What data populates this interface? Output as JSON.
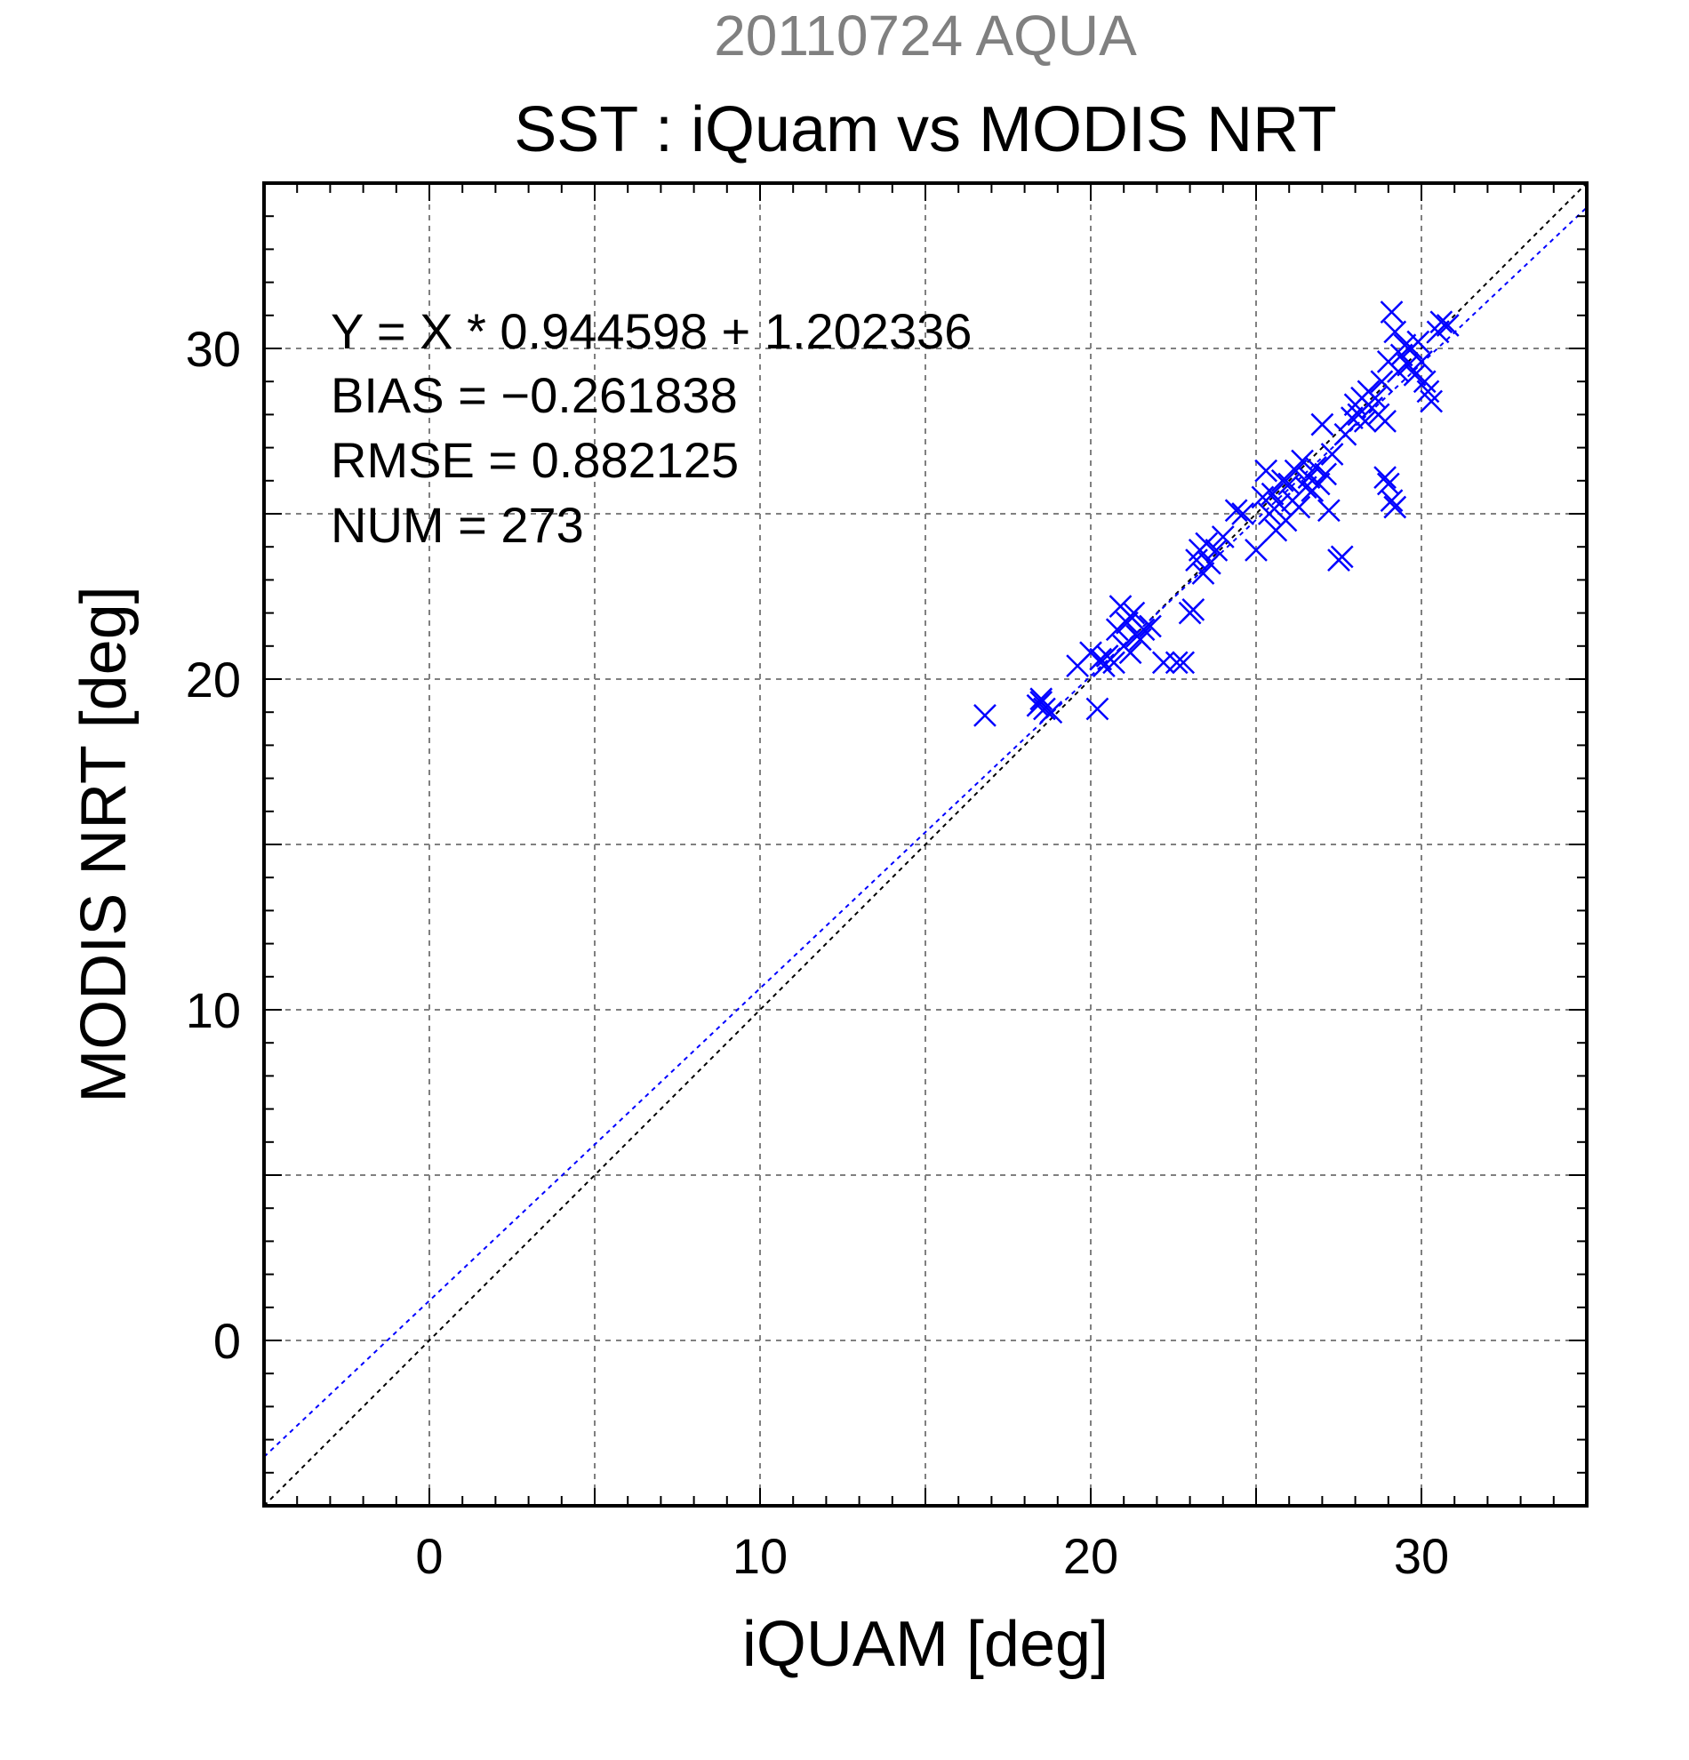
{
  "chart_data": {
    "type": "scatter",
    "suptitle": "20110724 AQUA",
    "title": "SST : iQuam vs MODIS NRT",
    "xlabel": "iQUAM [deg]",
    "ylabel": "MODIS NRT [deg]",
    "xlim": [
      -5,
      35
    ],
    "ylim": [
      -5,
      35
    ],
    "xticks": [
      0,
      10,
      20,
      30
    ],
    "yticks": [
      0,
      10,
      20,
      30
    ],
    "xtick_labels": [
      "0",
      "10",
      "20",
      "30"
    ],
    "ytick_labels": [
      "0",
      "10",
      "20",
      "30"
    ],
    "grid": true,
    "stats": [
      "Y = X * 0.944598 + 1.202336",
      "BIAS = −0.261838",
      "RMSE = 0.882125",
      "NUM = 273"
    ],
    "fit": {
      "slope": 0.944598,
      "intercept": 1.202336
    },
    "reference_line": {
      "slope": 1,
      "intercept": 0
    },
    "colors": {
      "points": "#0000ff",
      "fit_line": "#0000ff",
      "ref_line": "#000000",
      "grid": "#808080",
      "suptitle": "#808080"
    },
    "series": [
      {
        "marker": "x",
        "points": [
          [
            16.8,
            18.9
          ],
          [
            18.4,
            19.2
          ],
          [
            18.5,
            19.3
          ],
          [
            18.6,
            19.1
          ],
          [
            18.8,
            19.0
          ],
          [
            18.5,
            19.4
          ],
          [
            19.6,
            20.4
          ],
          [
            20.0,
            20.8
          ],
          [
            20.2,
            19.1
          ],
          [
            20.3,
            20.6
          ],
          [
            20.4,
            20.4
          ],
          [
            20.5,
            20.7
          ],
          [
            20.7,
            20.5
          ],
          [
            20.8,
            21.5
          ],
          [
            20.9,
            22.2
          ],
          [
            21.0,
            21.0
          ],
          [
            21.1,
            21.7
          ],
          [
            21.2,
            20.8
          ],
          [
            21.3,
            22.0
          ],
          [
            21.4,
            21.3
          ],
          [
            21.5,
            21.2
          ],
          [
            21.6,
            21.5
          ],
          [
            21.2,
            21.9
          ],
          [
            21.8,
            21.6
          ],
          [
            22.2,
            20.5
          ],
          [
            22.6,
            20.5
          ],
          [
            22.8,
            20.5
          ],
          [
            23.0,
            22.0
          ],
          [
            23.1,
            22.1
          ],
          [
            23.2,
            23.6
          ],
          [
            23.3,
            23.9
          ],
          [
            23.4,
            23.2
          ],
          [
            23.5,
            24.1
          ],
          [
            23.6,
            23.5
          ],
          [
            23.8,
            23.9
          ],
          [
            24.0,
            24.3
          ],
          [
            24.4,
            25.1
          ],
          [
            24.6,
            25.0
          ],
          [
            25.0,
            23.9
          ],
          [
            25.2,
            25.5
          ],
          [
            25.3,
            26.3
          ],
          [
            25.4,
            25.0
          ],
          [
            25.5,
            25.6
          ],
          [
            25.6,
            24.5
          ],
          [
            25.7,
            25.3
          ],
          [
            25.8,
            26.0
          ],
          [
            25.9,
            24.8
          ],
          [
            26.0,
            25.9
          ],
          [
            26.1,
            25.4
          ],
          [
            26.2,
            26.3
          ],
          [
            26.3,
            25.2
          ],
          [
            26.4,
            26.6
          ],
          [
            26.5,
            25.8
          ],
          [
            26.6,
            26.1
          ],
          [
            26.7,
            25.7
          ],
          [
            26.8,
            26.4
          ],
          [
            26.9,
            25.9
          ],
          [
            27.0,
            27.7
          ],
          [
            27.1,
            26.2
          ],
          [
            27.2,
            25.1
          ],
          [
            27.3,
            26.8
          ],
          [
            27.5,
            23.6
          ],
          [
            27.6,
            23.7
          ],
          [
            27.7,
            27.4
          ],
          [
            27.9,
            27.9
          ],
          [
            28.0,
            28.3
          ],
          [
            28.1,
            28.0
          ],
          [
            28.2,
            28.5
          ],
          [
            28.3,
            27.8
          ],
          [
            28.4,
            28.7
          ],
          [
            28.5,
            28.2
          ],
          [
            28.6,
            28.5
          ],
          [
            28.7,
            28.0
          ],
          [
            28.8,
            29.0
          ],
          [
            28.9,
            27.8
          ],
          [
            28.9,
            26.1
          ],
          [
            29.0,
            25.9
          ],
          [
            29.1,
            25.4
          ],
          [
            29.2,
            25.2
          ],
          [
            29.0,
            29.6
          ],
          [
            29.1,
            31.1
          ],
          [
            29.2,
            30.5
          ],
          [
            29.3,
            29.3
          ],
          [
            29.4,
            29.8
          ],
          [
            29.5,
            30.1
          ],
          [
            29.6,
            29.5
          ],
          [
            29.7,
            30.0
          ],
          [
            29.8,
            29.2
          ],
          [
            29.9,
            30.2
          ],
          [
            30.0,
            29.6
          ],
          [
            30.1,
            29.0
          ],
          [
            30.2,
            28.7
          ],
          [
            30.3,
            28.4
          ],
          [
            30.6,
            30.8
          ],
          [
            30.8,
            30.7
          ],
          [
            30.5,
            30.5
          ]
        ]
      }
    ]
  }
}
